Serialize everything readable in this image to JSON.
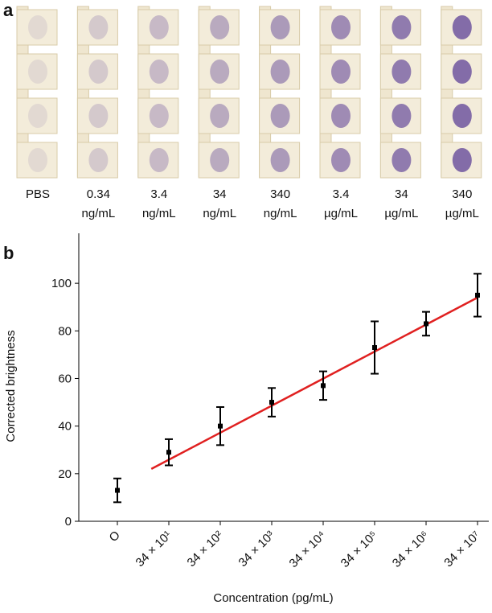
{
  "panel_labels": [
    "a",
    "b"
  ],
  "panel_a": {
    "labels": [
      [
        "PBS"
      ],
      [
        "0.34",
        "ng/mL"
      ],
      [
        "3.4",
        "ng/mL"
      ],
      [
        "34",
        "ng/mL"
      ],
      [
        "340",
        "ng/mL"
      ],
      [
        "3.4",
        "µg/mL"
      ],
      [
        "34",
        "µg/mL"
      ],
      [
        "340",
        "µg/mL"
      ]
    ]
  },
  "chart_data": {
    "type": "scatter",
    "x_label": "Concentration (pg/mL)",
    "y_label": "Corrected brightness",
    "categories": [
      "O",
      "34 × 10¹",
      "34 × 10²",
      "34 × 10³",
      "34 × 10⁴",
      "34 × 10⁵",
      "34 × 10⁶",
      "34 × 10⁷"
    ],
    "values": [
      13,
      29,
      40,
      50,
      57,
      73,
      83,
      95
    ],
    "errors": [
      5,
      5.5,
      8,
      6,
      6,
      11,
      5,
      9
    ],
    "color": "#000000",
    "fit": {
      "color": "#e02020",
      "x": [
        0.66,
        7
      ],
      "values": [
        22,
        94
      ]
    },
    "ylim": [
      0,
      121
    ],
    "yticks": [
      0,
      20,
      40,
      60,
      80,
      100
    ],
    "grid": false
  }
}
